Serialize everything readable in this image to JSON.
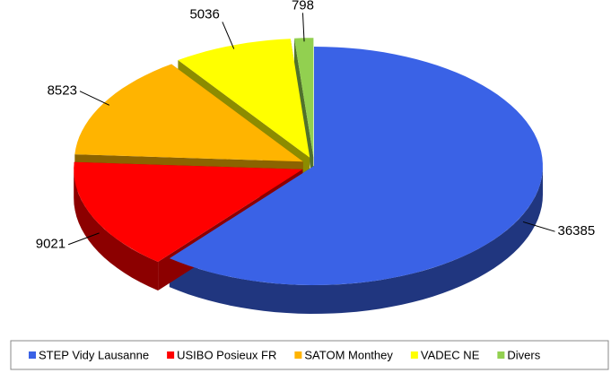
{
  "chart_data": {
    "type": "pie3d",
    "categories": [
      "STEP Vidy Lausanne",
      "USIBO Posieux FR",
      "SATOM Monthey",
      "VADEC NE",
      "Divers"
    ],
    "values": [
      36385,
      9021,
      8523,
      5036,
      798
    ],
    "colors": [
      "#3a62e6",
      "#ff0000",
      "#ffb400",
      "#ffff00",
      "#92d050"
    ],
    "legend": "bottom"
  }
}
